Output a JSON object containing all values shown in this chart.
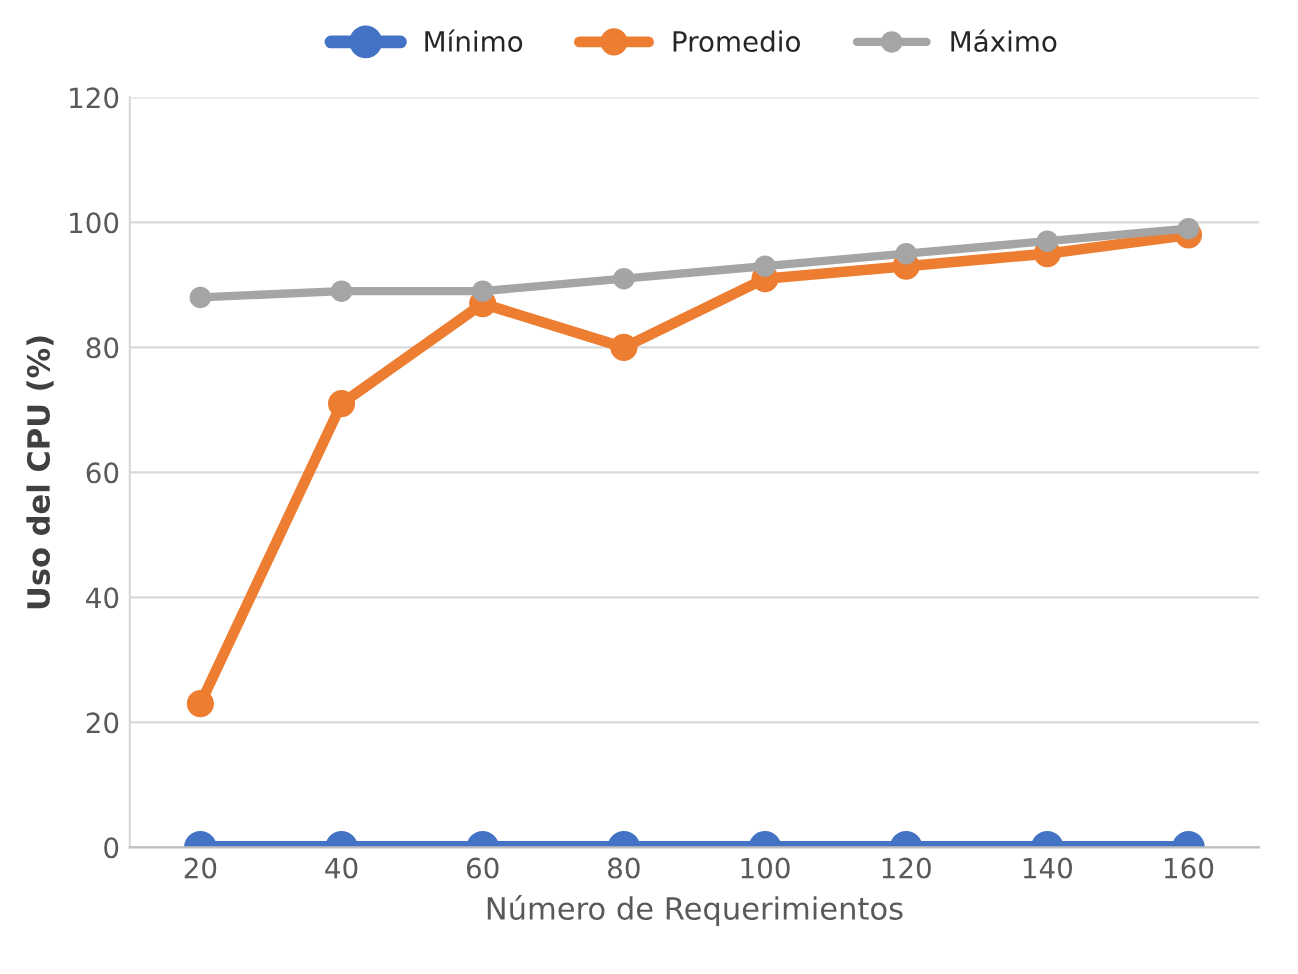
{
  "chart_data": {
    "type": "line",
    "xlabel": "Número de Requerimientos",
    "ylabel": "Uso del CPU (%)",
    "categories": [
      "20",
      "40",
      "60",
      "80",
      "100",
      "120",
      "140",
      "160"
    ],
    "series": [
      {
        "name": "Mínimo",
        "color": "#4472c4",
        "values": [
          0,
          0,
          0,
          0,
          0,
          0,
          0,
          0
        ]
      },
      {
        "name": "Promedio",
        "color": "#ed7d31",
        "values": [
          23,
          71,
          87,
          80,
          91,
          93,
          95,
          98
        ]
      },
      {
        "name": "Máximo",
        "color": "#a5a5a5",
        "values": [
          88,
          89,
          89,
          91,
          93,
          95,
          97,
          99
        ]
      }
    ],
    "ylim": [
      0,
      120
    ],
    "yticks": [
      0,
      20,
      40,
      60,
      80,
      100,
      120
    ],
    "grid": "y",
    "legend": "top",
    "marker": "circle",
    "line_style": "solid"
  }
}
